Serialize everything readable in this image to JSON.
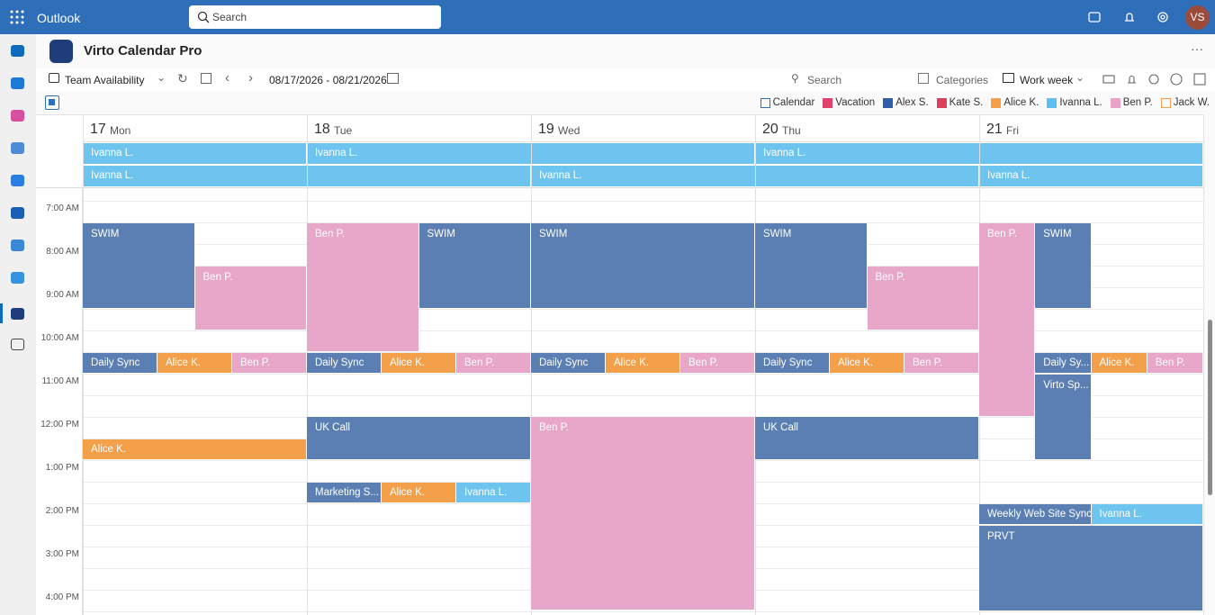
{
  "app": {
    "name": "Outlook",
    "search": "Search",
    "avatar": "VS"
  },
  "header": {
    "title": "Virto Calendar Pro"
  },
  "toolbar": {
    "view": "Team Availability",
    "date_range": "08/17/2026 - 08/21/2026",
    "search": "Search",
    "categories": "Categories",
    "mode": "Work week"
  },
  "legend": [
    {
      "name": "Calendar",
      "color": "#2f6fba",
      "style": "outline"
    },
    {
      "name": "Vacation",
      "color": "#e0426b",
      "style": "fill"
    },
    {
      "name": "Alex S.",
      "color": "#2e5ea8",
      "style": "fill"
    },
    {
      "name": "Kate S.",
      "color": "#d9425a",
      "style": "fill"
    },
    {
      "name": "Alice K.",
      "color": "#f4a04b",
      "style": "fill"
    },
    {
      "name": "Ivanna L.",
      "color": "#5fc0f0",
      "style": "fill"
    },
    {
      "name": "Ben P.",
      "color": "#eaa3c6",
      "style": "fill"
    },
    {
      "name": "Jack W.",
      "color": "#f4a04b",
      "style": "outline"
    }
  ],
  "all_day": [
    [
      {
        "title": "Ivanna L.",
        "color": "#6cc4ef"
      },
      {
        "title": "Ivanna L.",
        "color": "#6cc4ef"
      },
      {
        "title": "Ivanna L.",
        "color": "#6cc4ef"
      }
    ],
    [
      {
        "title": "Ivanna L.",
        "color": "#6cc4ef"
      },
      {
        "title": "Ivanna L.",
        "color": "#6cc4ef"
      },
      {
        "title": "Ivanna L.",
        "color": "#6cc4ef"
      }
    ]
  ],
  "times": [
    "7:00 AM",
    "8:00 AM",
    "9:00 AM",
    "10:00 AM",
    "11:00 AM",
    "12:00 PM",
    "1:00 PM",
    "2:00 PM",
    "3:00 PM",
    "4:00 PM"
  ],
  "days": [
    {
      "number": "17",
      "name": "Mon",
      "events": [
        {
          "title": "SWIM",
          "color": "#5b7fb2"
        },
        {
          "title": "Ben P.",
          "color": "#e8a6c8"
        },
        {
          "title": "Daily Sync",
          "color": "#5b7fb2"
        },
        {
          "title": "Alice K.",
          "color": "#f4a04b"
        },
        {
          "title": "Ben P.",
          "color": "#e8a6c8"
        },
        {
          "title": "Alice K.",
          "color": "#f4a04b"
        }
      ]
    },
    {
      "number": "18",
      "name": "Tue",
      "events": [
        {
          "title": "Ben P.",
          "color": "#e8a6c8"
        },
        {
          "title": "SWIM",
          "color": "#5b7fb2"
        },
        {
          "title": "Daily Sync",
          "color": "#5b7fb2"
        },
        {
          "title": "Alice K.",
          "color": "#f4a04b"
        },
        {
          "title": "Ben P.",
          "color": "#e8a6c8"
        },
        {
          "title": "UK Call",
          "color": "#5b7fb2"
        },
        {
          "title": "Marketing S...",
          "color": "#5b7fb2"
        },
        {
          "title": "Alice K.",
          "color": "#f4a04b"
        },
        {
          "title": "Ivanna L.",
          "color": "#6cc4ef"
        }
      ]
    },
    {
      "number": "19",
      "name": "Wed",
      "events": [
        {
          "title": "SWIM",
          "color": "#5b7fb2"
        },
        {
          "title": "Daily Sync",
          "color": "#5b7fb2"
        },
        {
          "title": "Alice K.",
          "color": "#f4a04b"
        },
        {
          "title": "Ben P.",
          "color": "#e8a6c8"
        },
        {
          "title": "Ben P.",
          "color": "#e8a6c8"
        }
      ]
    },
    {
      "number": "20",
      "name": "Thu",
      "events": [
        {
          "title": "SWIM",
          "color": "#5b7fb2"
        },
        {
          "title": "Ben P.",
          "color": "#e8a6c8"
        },
        {
          "title": "Daily Sync",
          "color": "#5b7fb2"
        },
        {
          "title": "Alice K.",
          "color": "#f4a04b"
        },
        {
          "title": "Ben P.",
          "color": "#e8a6c8"
        },
        {
          "title": "UK Call",
          "color": "#5b7fb2"
        }
      ]
    },
    {
      "number": "21",
      "name": "Fri",
      "events": [
        {
          "title": "Ben P.",
          "color": "#e8a6c8"
        },
        {
          "title": "SWIM",
          "color": "#5b7fb2"
        },
        {
          "title": "Daily Sy...",
          "color": "#5b7fb2"
        },
        {
          "title": "Alice K.",
          "color": "#f4a04b"
        },
        {
          "title": "Ben P.",
          "color": "#e8a6c8"
        },
        {
          "title": "Virto Sp...",
          "color": "#5b7fb2"
        },
        {
          "title": "Weekly Web Site Sync",
          "color": "#5b7fb2"
        },
        {
          "title": "Ivanna L.",
          "color": "#6cc4ef"
        },
        {
          "title": "PRVT",
          "color": "#5b7fb2"
        }
      ]
    }
  ]
}
